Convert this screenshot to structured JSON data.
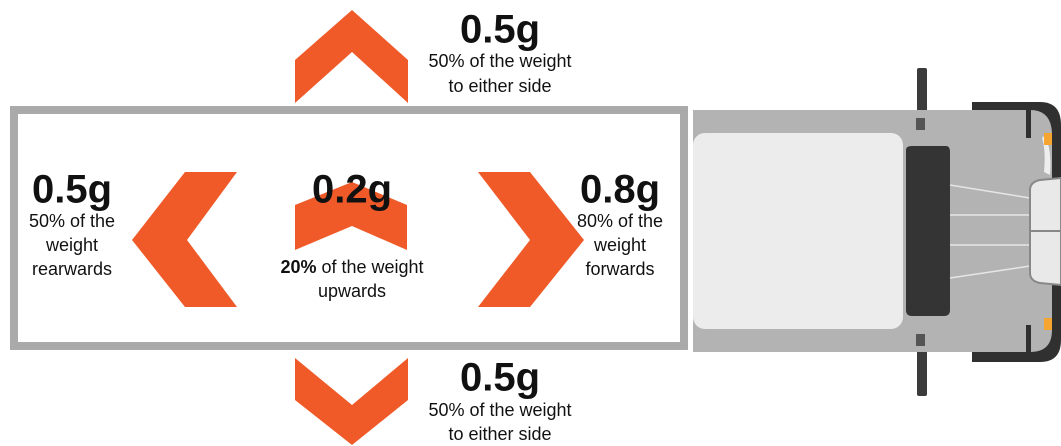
{
  "forces": {
    "top": {
      "value": "0.5g",
      "lines": [
        "50% of the weight",
        "to either side"
      ]
    },
    "bottom": {
      "value": "0.5g",
      "lines": [
        "50% of the weight",
        "to either side"
      ]
    },
    "left": {
      "value": "0.5g",
      "lines": [
        "50% of the",
        "weight",
        "rearwards"
      ]
    },
    "center": {
      "value": "0.2g",
      "bold": "20%",
      "rest": " of the weight",
      "lines": [
        "upwards"
      ]
    },
    "right": {
      "value": "0.8g",
      "lines": [
        "80% of the",
        "weight",
        "forwards"
      ]
    }
  }
}
